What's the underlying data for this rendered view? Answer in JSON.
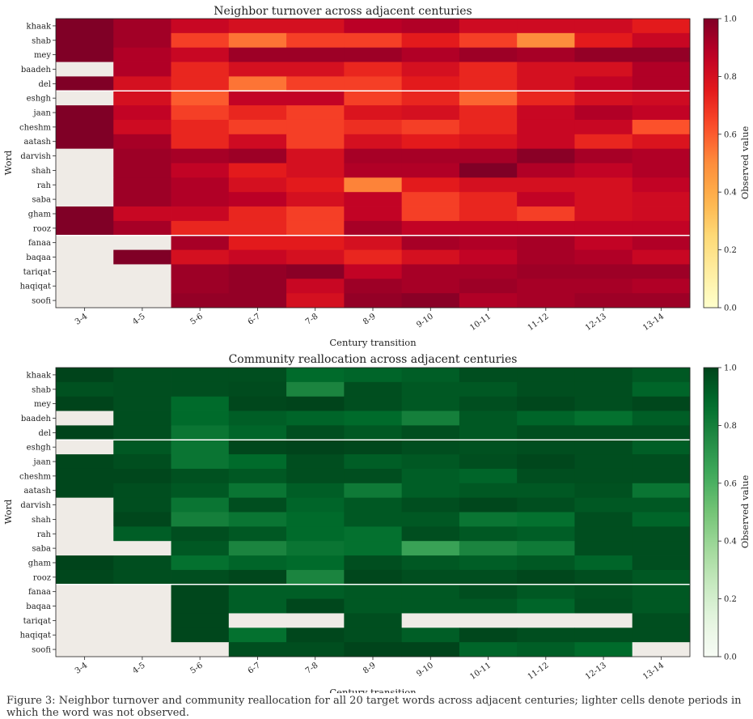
{
  "chart_data": [
    {
      "type": "heatmap",
      "title": "Neighbor turnover across adjacent centuries",
      "xlabel": "Century transition",
      "ylabel": "Word",
      "colorbar_label": "Observed value",
      "colormap": "YlOrRd",
      "missing_color": "#efebe6",
      "vmin": 0.0,
      "vmax": 1.0,
      "colorbar_ticks": [
        "0.0",
        "0.2",
        "0.4",
        "0.6",
        "0.8",
        "1.0"
      ],
      "x": [
        "3-4",
        "4-5",
        "5-6",
        "6-7",
        "7-8",
        "8-9",
        "9-10",
        "10-11",
        "11-12",
        "12-13",
        "13-14"
      ],
      "y": [
        "khaak",
        "shab",
        "mey",
        "baadeh",
        "del",
        "eshgh",
        "jaan",
        "cheshm",
        "aatash",
        "darvish",
        "shah",
        "rah",
        "saba",
        "gham",
        "rooz",
        "fanaa",
        "baqaa",
        "tariqat",
        "haqiqat",
        "soofi"
      ],
      "group_separators_after": [
        "del",
        "rooz"
      ],
      "values": [
        [
          1.0,
          0.93,
          0.84,
          0.8,
          0.8,
          0.88,
          0.9,
          0.82,
          0.82,
          0.82,
          0.75
        ],
        [
          1.0,
          0.93,
          0.66,
          0.55,
          0.66,
          0.66,
          0.75,
          0.66,
          0.5,
          0.75,
          0.84
        ],
        [
          1.0,
          0.9,
          0.84,
          0.94,
          0.94,
          0.94,
          0.9,
          0.94,
          0.92,
          0.96,
          0.96
        ],
        [
          null,
          0.9,
          0.72,
          0.8,
          0.8,
          0.72,
          0.8,
          0.72,
          0.8,
          0.8,
          0.9
        ],
        [
          1.0,
          0.8,
          0.72,
          0.55,
          0.66,
          0.66,
          0.75,
          0.72,
          0.8,
          0.86,
          0.9
        ],
        [
          null,
          0.8,
          0.6,
          0.86,
          0.86,
          0.66,
          0.72,
          0.58,
          0.72,
          0.8,
          0.82
        ],
        [
          1.0,
          0.86,
          0.66,
          0.72,
          0.66,
          0.78,
          0.8,
          0.72,
          0.84,
          0.9,
          0.86
        ],
        [
          1.0,
          0.82,
          0.72,
          0.66,
          0.66,
          0.7,
          0.66,
          0.72,
          0.84,
          0.84,
          0.62
        ],
        [
          1.0,
          0.92,
          0.72,
          0.82,
          0.66,
          0.8,
          0.75,
          0.78,
          0.84,
          0.72,
          0.78
        ],
        [
          null,
          0.94,
          0.92,
          0.94,
          0.8,
          0.92,
          0.92,
          0.92,
          0.98,
          0.92,
          0.9
        ],
        [
          null,
          0.94,
          0.86,
          0.75,
          0.8,
          0.9,
          0.9,
          1.0,
          0.9,
          0.86,
          0.9
        ],
        [
          null,
          0.94,
          0.9,
          0.8,
          0.75,
          0.52,
          0.75,
          0.8,
          0.8,
          0.8,
          0.86
        ],
        [
          null,
          0.94,
          0.9,
          0.88,
          0.8,
          0.86,
          0.66,
          0.72,
          0.86,
          0.8,
          0.82
        ],
        [
          1.0,
          0.84,
          0.84,
          0.72,
          0.66,
          0.86,
          0.66,
          0.72,
          0.66,
          0.8,
          0.82
        ],
        [
          1.0,
          0.92,
          0.72,
          0.72,
          0.66,
          0.92,
          0.86,
          0.86,
          0.86,
          0.86,
          0.86
        ],
        [
          null,
          null,
          0.92,
          0.75,
          0.75,
          0.8,
          0.92,
          0.9,
          0.92,
          0.86,
          0.9
        ],
        [
          null,
          1.0,
          0.8,
          0.84,
          0.8,
          0.72,
          0.8,
          0.86,
          0.92,
          0.9,
          0.84
        ],
        [
          null,
          null,
          0.94,
          0.96,
          0.98,
          0.86,
          0.92,
          0.92,
          0.94,
          0.94,
          0.94
        ],
        [
          null,
          null,
          0.94,
          0.96,
          0.84,
          0.94,
          0.92,
          0.94,
          0.92,
          0.92,
          0.9
        ],
        [
          null,
          null,
          0.96,
          0.96,
          0.8,
          0.96,
          0.98,
          0.9,
          0.92,
          0.94,
          0.94
        ]
      ]
    },
    {
      "type": "heatmap",
      "title": "Community reallocation across adjacent centuries",
      "xlabel": "Century transition",
      "ylabel": "Word",
      "colorbar_label": "Observed value",
      "colormap": "Greens",
      "missing_color": "#efebe6",
      "vmin": 0.0,
      "vmax": 1.0,
      "colorbar_ticks": [
        "0.0",
        "0.2",
        "0.4",
        "0.6",
        "0.8",
        "1.0"
      ],
      "x": [
        "3-4",
        "4-5",
        "5-6",
        "6-7",
        "7-8",
        "8-9",
        "9-10",
        "10-11",
        "11-12",
        "12-13",
        "13-14"
      ],
      "y": [
        "khaak",
        "shab",
        "mey",
        "baadeh",
        "del",
        "eshgh",
        "jaan",
        "cheshm",
        "aatash",
        "darvish",
        "shah",
        "rah",
        "saba",
        "gham",
        "rooz",
        "fanaa",
        "baqaa",
        "tariqat",
        "haqiqat",
        "soofi"
      ],
      "group_separators_after": [
        "del",
        "rooz"
      ],
      "values": [
        [
          1.0,
          0.97,
          0.97,
          0.97,
          0.88,
          0.9,
          0.92,
          0.97,
          0.97,
          0.97,
          0.94
        ],
        [
          0.96,
          0.97,
          0.97,
          0.98,
          0.78,
          0.97,
          0.94,
          0.94,
          0.97,
          0.97,
          0.9
        ],
        [
          1.0,
          0.97,
          0.88,
          0.99,
          1.0,
          0.97,
          0.94,
          0.97,
          0.99,
          0.97,
          0.99
        ],
        [
          null,
          0.97,
          0.88,
          0.92,
          0.9,
          0.88,
          0.8,
          0.94,
          0.9,
          0.86,
          0.92
        ],
        [
          1.0,
          0.97,
          0.84,
          0.9,
          0.97,
          0.94,
          0.97,
          0.94,
          0.97,
          0.97,
          0.97
        ],
        [
          null,
          0.94,
          0.84,
          0.99,
          1.0,
          0.99,
          0.97,
          0.96,
          0.97,
          0.97,
          0.92
        ],
        [
          0.99,
          0.97,
          0.84,
          0.88,
          0.97,
          0.92,
          0.94,
          0.97,
          0.99,
          0.97,
          0.97
        ],
        [
          0.99,
          0.99,
          0.96,
          0.94,
          0.97,
          0.97,
          0.92,
          0.9,
          0.97,
          0.97,
          0.97
        ],
        [
          0.99,
          0.97,
          0.94,
          0.84,
          0.92,
          0.82,
          0.92,
          0.94,
          0.94,
          0.96,
          0.84
        ],
        [
          null,
          0.97,
          0.84,
          0.97,
          0.9,
          0.94,
          0.97,
          0.99,
          0.97,
          0.94,
          0.94
        ],
        [
          null,
          0.99,
          0.8,
          0.84,
          0.88,
          0.94,
          0.94,
          0.84,
          0.86,
          0.97,
          0.9
        ],
        [
          null,
          0.92,
          0.97,
          0.94,
          0.88,
          0.86,
          0.97,
          0.94,
          0.92,
          0.97,
          0.97
        ],
        [
          null,
          null,
          0.94,
          0.78,
          0.84,
          0.86,
          0.66,
          0.78,
          0.82,
          0.97,
          0.97
        ],
        [
          1.0,
          0.97,
          0.86,
          0.9,
          0.88,
          0.97,
          0.94,
          0.92,
          0.94,
          0.9,
          0.97
        ],
        [
          0.99,
          0.97,
          0.97,
          0.99,
          0.78,
          0.99,
          0.97,
          0.97,
          0.99,
          0.97,
          0.94
        ],
        [
          null,
          null,
          0.99,
          0.92,
          0.92,
          0.94,
          0.94,
          0.97,
          0.94,
          0.96,
          0.94
        ],
        [
          null,
          null,
          0.99,
          0.92,
          0.99,
          0.94,
          0.94,
          0.94,
          0.9,
          0.97,
          0.94
        ],
        [
          null,
          null,
          0.99,
          null,
          null,
          0.97,
          null,
          null,
          null,
          null,
          0.97
        ],
        [
          null,
          null,
          0.99,
          0.86,
          0.99,
          0.97,
          0.92,
          0.99,
          0.97,
          0.97,
          0.97
        ],
        [
          null,
          null,
          null,
          0.97,
          0.97,
          1.0,
          1.0,
          0.9,
          0.92,
          0.88,
          null
        ]
      ]
    }
  ],
  "caption": "Figure 3: Neighbor turnover and community reallocation for all 20 target words across adjacent centuries; lighter cells denote periods in which the word was not observed."
}
